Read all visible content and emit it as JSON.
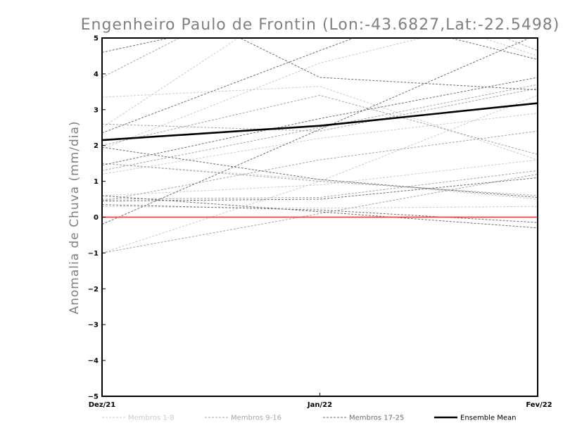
{
  "chart_data": {
    "type": "line",
    "title": "Engenheiro Paulo de Frontin (Lon:-43.6827,Lat:-22.5498)",
    "xlabel": "",
    "ylabel": "Anomalia de Chuva (mm/dia)",
    "categories": [
      "Dez/21",
      "Jan/22",
      "Fev/22"
    ],
    "y_ticks": [
      "-5",
      "-4",
      "-3",
      "-2",
      "-1",
      "0",
      "1",
      "2",
      "3",
      "4",
      "5"
    ],
    "ylim": [
      -5,
      5
    ],
    "zero_line_value": 0,
    "colors": {
      "group_1_8": "#cccccc",
      "group_9_16": "#a6a6a6",
      "group_17_25": "#6e6e6e",
      "mean": "#000000",
      "zero": "#ff4040"
    },
    "legend": [
      {
        "label": "Membros 1-8",
        "group": "group_1_8"
      },
      {
        "label": "Membros 9-16",
        "group": "group_9_16"
      },
      {
        "label": "Membros 17-25",
        "group": "group_17_25"
      },
      {
        "label": "Ensemble Mean",
        "group": "mean"
      }
    ],
    "series": [
      {
        "name": "Membro 1",
        "group": "group_1_8",
        "values": [
          1.2,
          2.2,
          2.9
        ]
      },
      {
        "name": "Membro 2",
        "group": "group_1_8",
        "values": [
          3.35,
          3.65,
          1.6
        ]
      },
      {
        "name": "Membro 3",
        "group": "group_1_8",
        "values": [
          1.9,
          4.3,
          5.8
        ]
      },
      {
        "name": "Membro 4",
        "group": "group_1_8",
        "values": [
          0.6,
          0.9,
          1.6
        ]
      },
      {
        "name": "Membro 5",
        "group": "group_1_8",
        "values": [
          -1.0,
          1.0,
          3.4
        ]
      },
      {
        "name": "Membro 6",
        "group": "group_1_8",
        "values": [
          2.5,
          6.5,
          4.5
        ]
      },
      {
        "name": "Membro 7",
        "group": "group_1_8",
        "values": [
          0.3,
          0.25,
          0.3
        ]
      },
      {
        "name": "Membro 8",
        "group": "group_1_8",
        "values": [
          1.5,
          1.05,
          0.5
        ]
      },
      {
        "name": "Membro 9",
        "group": "group_9_16",
        "values": [
          2.6,
          2.4,
          3.6
        ]
      },
      {
        "name": "Membro 10",
        "group": "group_9_16",
        "values": [
          0.45,
          1.6,
          2.4
        ]
      },
      {
        "name": "Membro 11",
        "group": "group_9_16",
        "values": [
          1.3,
          2.5,
          3.7
        ]
      },
      {
        "name": "Membro 12",
        "group": "group_9_16",
        "values": [
          0.5,
          0.55,
          1.3
        ]
      },
      {
        "name": "Membro 13",
        "group": "group_9_16",
        "values": [
          -1.0,
          0.1,
          1.2
        ]
      },
      {
        "name": "Membro 14",
        "group": "group_9_16",
        "values": [
          2.0,
          3.4,
          1.75
        ]
      },
      {
        "name": "Membro 15",
        "group": "group_9_16",
        "values": [
          3.9,
          7.0,
          4.65
        ]
      },
      {
        "name": "Membro 16",
        "group": "group_9_16",
        "values": [
          1.5,
          1.0,
          0.6
        ]
      },
      {
        "name": "Membro 17",
        "group": "group_17_25",
        "values": [
          2.35,
          4.65,
          6.9
        ]
      },
      {
        "name": "Membro 18",
        "group": "group_17_25",
        "values": [
          -0.2,
          2.45,
          5.1
        ]
      },
      {
        "name": "Membro 19",
        "group": "group_17_25",
        "values": [
          1.45,
          2.75,
          3.9
        ]
      },
      {
        "name": "Membro 20",
        "group": "group_17_25",
        "values": [
          0.6,
          0.15,
          -0.3
        ]
      },
      {
        "name": "Membro 21",
        "group": "group_17_25",
        "values": [
          1.95,
          1.05,
          0.55
        ]
      },
      {
        "name": "Membro 22",
        "group": "group_17_25",
        "values": [
          0.35,
          0.2,
          -0.15
        ]
      },
      {
        "name": "Membro 23",
        "group": "group_17_25",
        "values": [
          6.9,
          3.9,
          3.55
        ]
      },
      {
        "name": "Membro 24",
        "group": "group_17_25",
        "values": [
          4.6,
          5.9,
          4.4
        ]
      },
      {
        "name": "Membro 25",
        "group": "group_17_25",
        "values": [
          0.45,
          0.5,
          1.1
        ]
      },
      {
        "name": "Ensemble Mean",
        "group": "mean",
        "values": [
          2.15,
          2.55,
          3.18
        ]
      }
    ]
  }
}
